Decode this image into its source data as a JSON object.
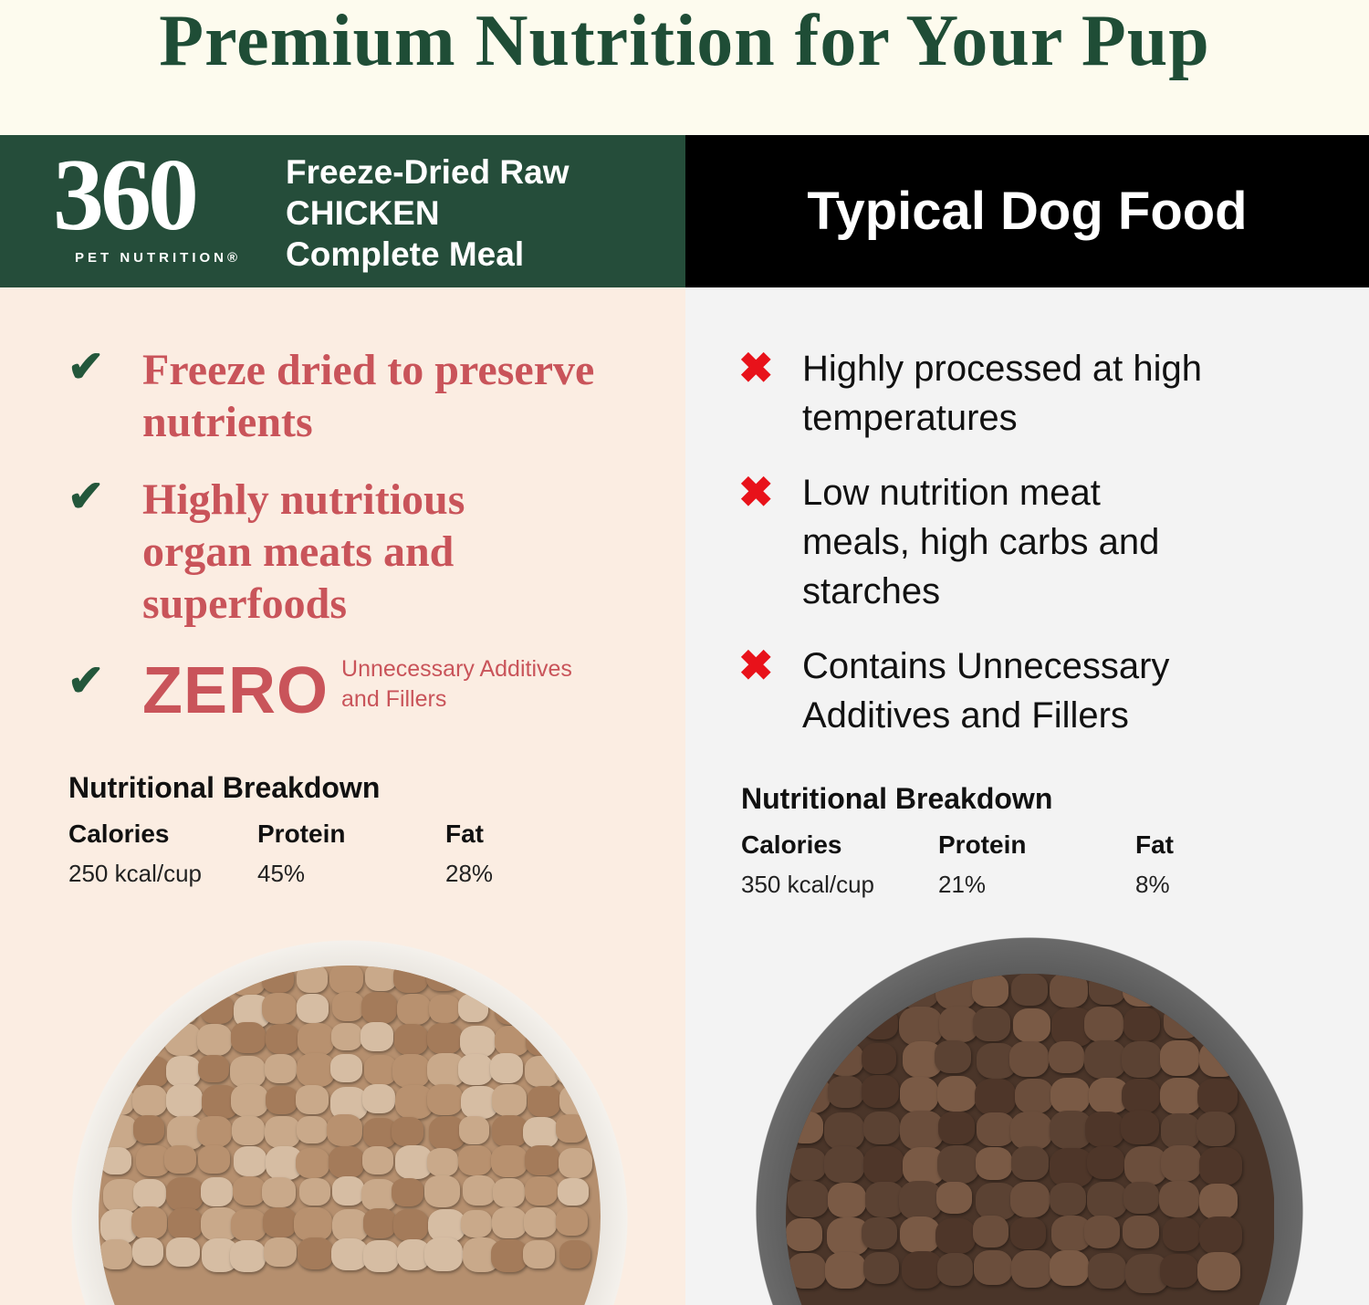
{
  "title": "Premium Nutrition for Your Pup",
  "brand": {
    "logo_number": "360",
    "logo_sub": "PET NUTRITION®",
    "product_lines": [
      "Freeze-Dried Raw",
      "CHICKEN",
      "Complete Meal"
    ]
  },
  "competitor_header": "Typical Dog Food",
  "pros": [
    {
      "icon": "check-icon",
      "text": "Freeze dried to preserve nutrients"
    },
    {
      "icon": "check-icon",
      "text": "Highly nutritious organ meats and superfoods"
    },
    {
      "icon": "check-icon",
      "zero": "ZERO",
      "text": "Unnecessary Additives and Fillers"
    }
  ],
  "cons": [
    {
      "icon": "x-icon",
      "text": "Highly processed at high temperatures"
    },
    {
      "icon": "x-icon",
      "text": "Low nutrition meat meals, high carbs and starches"
    },
    {
      "icon": "x-icon",
      "text": "Contains Unnecessary Additives and Fillers"
    }
  ],
  "left_breakdown": {
    "heading": "Nutritional Breakdown",
    "labels": [
      "Calories",
      "Protein",
      "Fat"
    ],
    "values": [
      "250 kcal/cup",
      "45%",
      "28%"
    ]
  },
  "right_breakdown": {
    "heading": "Nutritional Breakdown",
    "labels": [
      "Calories",
      "Protein",
      "Fat"
    ],
    "values": [
      "350 kcal/cup",
      "21%",
      "8%"
    ]
  },
  "colors": {
    "brand_green": "#254d3a",
    "accent_red": "#c9545a",
    "check_green": "#23573b",
    "x_red": "#e8121a"
  }
}
